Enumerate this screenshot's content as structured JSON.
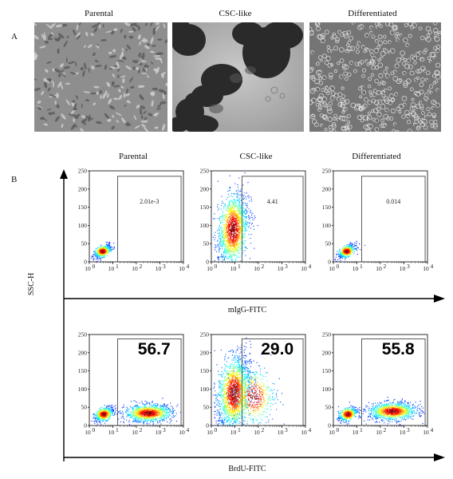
{
  "panel_a": {
    "letter": "A",
    "images": [
      {
        "title": "Parental"
      },
      {
        "title": "CSC-like"
      },
      {
        "title": "Differentiated"
      }
    ]
  },
  "panel_b": {
    "letter": "B",
    "column_titles": [
      "Parental",
      "CSC-like",
      "Differentiated"
    ],
    "y_axis_label": "SSC-H",
    "row1_x_label": "mIgG-FITC",
    "row2_x_label": "BrdU-FITC",
    "y_ticks": [
      "0",
      "50",
      "100",
      "150",
      "200",
      "250"
    ],
    "x_ticks": [
      "10",
      "10",
      "10",
      "10",
      "10"
    ],
    "x_tick_exponents": [
      "0",
      "1",
      "2",
      "3",
      "4"
    ]
  },
  "chart_data": [
    {
      "type": "scatter",
      "row": "mIgG-FITC",
      "column": "Parental",
      "gate_value": "2.01e-3",
      "gate_font": "small",
      "gate_x_range": [
        1.2,
        3.9
      ],
      "gate_y_range": [
        0,
        235
      ],
      "xscale": "log",
      "xlim": [
        0,
        4
      ],
      "ylim": [
        0,
        250
      ]
    },
    {
      "type": "scatter",
      "row": "mIgG-FITC",
      "column": "CSC-like",
      "gate_value": "4.41",
      "gate_font": "small",
      "gate_x_range": [
        1.3,
        3.9
      ],
      "gate_y_range": [
        0,
        235
      ],
      "xscale": "log",
      "xlim": [
        0,
        4
      ],
      "ylim": [
        0,
        250
      ]
    },
    {
      "type": "scatter",
      "row": "mIgG-FITC",
      "column": "Differentiated",
      "gate_value": "0.014",
      "gate_font": "small",
      "gate_x_range": [
        1.2,
        3.9
      ],
      "gate_y_range": [
        0,
        235
      ],
      "xscale": "log",
      "xlim": [
        0,
        4
      ],
      "ylim": [
        0,
        250
      ]
    },
    {
      "type": "scatter",
      "row": "BrdU-FITC",
      "column": "Parental",
      "gate_value": "56.7",
      "gate_font": "large",
      "gate_x_range": [
        1.2,
        3.9
      ],
      "gate_y_range": [
        0,
        238
      ],
      "xscale": "log",
      "xlim": [
        0,
        4
      ],
      "ylim": [
        0,
        250
      ]
    },
    {
      "type": "scatter",
      "row": "BrdU-FITC",
      "column": "CSC-like",
      "gate_value": "29.0",
      "gate_font": "large",
      "gate_x_range": [
        1.3,
        3.9
      ],
      "gate_y_range": [
        0,
        238
      ],
      "xscale": "log",
      "xlim": [
        0,
        4
      ],
      "ylim": [
        0,
        250
      ]
    },
    {
      "type": "scatter",
      "row": "BrdU-FITC",
      "column": "Differentiated",
      "gate_value": "55.8",
      "gate_font": "large",
      "gate_x_range": [
        1.2,
        3.9
      ],
      "gate_y_range": [
        0,
        238
      ],
      "xscale": "log",
      "xlim": [
        0,
        4
      ],
      "ylim": [
        0,
        250
      ]
    }
  ]
}
